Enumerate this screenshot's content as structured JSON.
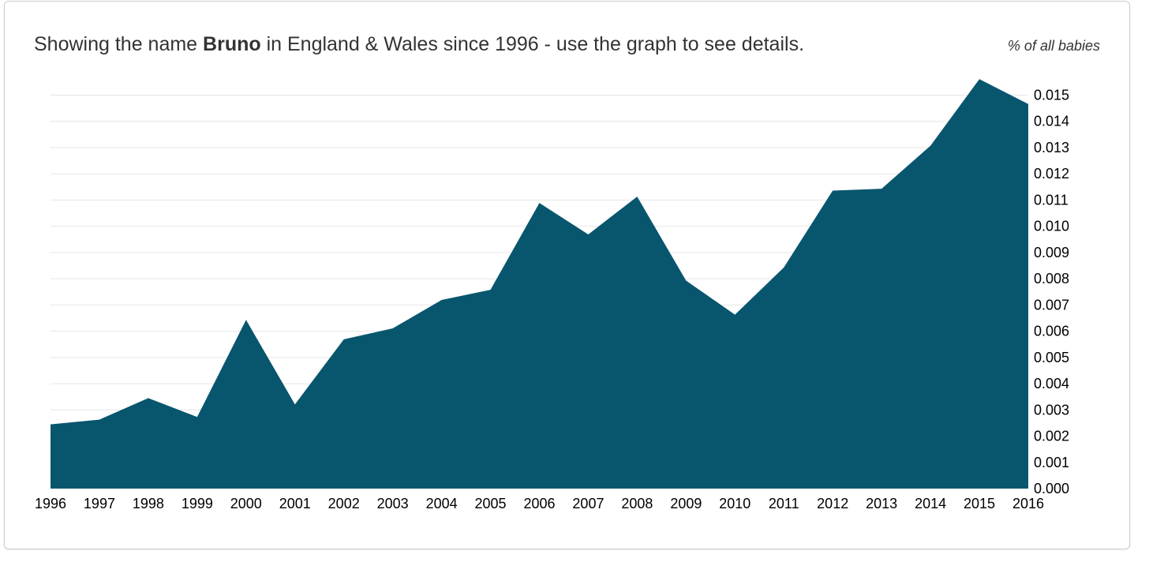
{
  "header": {
    "title_prefix": "Showing the name ",
    "name": "Bruno",
    "title_suffix": " in England & Wales since 1996 - use the graph to see details.",
    "y_caption": "% of all babies"
  },
  "colors": {
    "area": "#08566e",
    "grid": "#e6e6e6",
    "border": "#cccccc"
  },
  "chart_data": {
    "type": "area",
    "title": "Showing the name Bruno in England & Wales since 1996 - use the graph to see details.",
    "ylabel": "% of all babies",
    "xlabel": "",
    "x": [
      1996,
      1997,
      1998,
      1999,
      2000,
      2001,
      2002,
      2003,
      2004,
      2005,
      2006,
      2007,
      2008,
      2009,
      2010,
      2011,
      2012,
      2013,
      2014,
      2015,
      2016
    ],
    "series": [
      {
        "values": [
          0.00245,
          0.00263,
          0.00345,
          0.00273,
          0.00643,
          0.00321,
          0.00569,
          0.00611,
          0.00719,
          0.00758,
          0.01089,
          0.00969,
          0.01113,
          0.00793,
          0.00663,
          0.00843,
          0.01136,
          0.01143,
          0.01307,
          0.01561,
          0.01466
        ]
      }
    ],
    "ylim": [
      0,
      0.015
    ],
    "yticks": [
      "0.000",
      "0.001",
      "0.002",
      "0.003",
      "0.004",
      "0.005",
      "0.006",
      "0.007",
      "0.008",
      "0.009",
      "0.010",
      "0.011",
      "0.012",
      "0.013",
      "0.014",
      "0.015"
    ],
    "xticks": [
      "1996",
      "1997",
      "1998",
      "1999",
      "2000",
      "2001",
      "2002",
      "2003",
      "2004",
      "2005",
      "2006",
      "2007",
      "2008",
      "2009",
      "2010",
      "2011",
      "2012",
      "2013",
      "2014",
      "2015",
      "2016"
    ],
    "grid": true,
    "y_axis_side": "right"
  }
}
